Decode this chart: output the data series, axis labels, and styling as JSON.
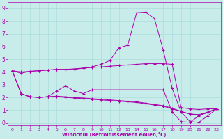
{
  "xlabel": "Windchill (Refroidissement éolien,°C)",
  "background_color": "#c8ece9",
  "grid_color": "#aadddd",
  "line_color": "#aa00aa",
  "xlim": [
    -0.5,
    23.5
  ],
  "ylim": [
    -0.2,
    9.5
  ],
  "xticks": [
    0,
    1,
    2,
    3,
    4,
    5,
    6,
    7,
    8,
    9,
    10,
    11,
    12,
    13,
    14,
    15,
    16,
    17,
    18,
    19,
    20,
    21,
    22,
    23
  ],
  "yticks": [
    0,
    1,
    2,
    3,
    4,
    5,
    6,
    7,
    8,
    9
  ],
  "series_flat_x": [
    0,
    1,
    2,
    3,
    4,
    5,
    6,
    7,
    8,
    9,
    10,
    11,
    12,
    13,
    14,
    15,
    16,
    17,
    18,
    19,
    20,
    21,
    22,
    23
  ],
  "series_flat_y": [
    4.1,
    3.9,
    4.05,
    4.1,
    4.15,
    4.2,
    4.2,
    4.25,
    4.3,
    4.35,
    4.4,
    4.45,
    4.5,
    4.55,
    4.6,
    4.65,
    4.65,
    4.65,
    4.6,
    1.2,
    1.1,
    1.05,
    1.1,
    1.1
  ],
  "series_zigzag_x": [
    1,
    2,
    3,
    4,
    5,
    6,
    7,
    8,
    9,
    17,
    18,
    19,
    20,
    21,
    22,
    23
  ],
  "series_zigzag_y": [
    2.3,
    2.05,
    2.0,
    2.05,
    2.5,
    2.9,
    2.5,
    2.3,
    2.6,
    2.6,
    0.85,
    0.1,
    0.05,
    0.55,
    0.85,
    1.1
  ],
  "series_decline1_x": [
    0,
    1,
    2,
    3,
    4,
    5,
    6,
    7,
    8,
    9,
    10,
    11,
    12,
    13,
    14,
    15,
    16,
    17,
    18,
    19,
    20,
    21,
    22,
    23
  ],
  "series_decline1_y": [
    4.1,
    2.3,
    2.05,
    2.0,
    2.05,
    2.05,
    2.0,
    1.95,
    1.9,
    1.85,
    1.8,
    1.75,
    1.7,
    1.65,
    1.6,
    1.5,
    1.4,
    1.3,
    1.1,
    0.9,
    0.7,
    0.6,
    0.8,
    1.1
  ],
  "series_decline2_x": [
    0,
    1,
    2,
    3,
    4,
    5,
    6,
    7,
    8,
    9,
    10,
    11,
    12,
    13,
    14,
    15,
    16,
    17,
    18,
    19,
    20,
    21,
    22,
    23
  ],
  "series_decline2_y": [
    4.1,
    2.3,
    2.05,
    2.0,
    2.05,
    2.1,
    2.05,
    2.0,
    1.95,
    1.9,
    1.85,
    1.8,
    1.75,
    1.7,
    1.65,
    1.55,
    1.45,
    1.35,
    1.15,
    0.9,
    0.7,
    0.65,
    0.85,
    1.1
  ],
  "series_peak_x": [
    0,
    1,
    2,
    3,
    4,
    5,
    6,
    7,
    8,
    9,
    10,
    11,
    12,
    13,
    14,
    15,
    16,
    17,
    18,
    19,
    20,
    21,
    22,
    23
  ],
  "series_peak_y": [
    4.1,
    4.0,
    4.05,
    4.1,
    4.15,
    4.2,
    4.2,
    4.2,
    4.3,
    4.4,
    4.6,
    4.9,
    5.9,
    6.1,
    8.65,
    8.7,
    8.2,
    5.7,
    2.7,
    0.85,
    0.1,
    0.05,
    0.55,
    1.1
  ]
}
